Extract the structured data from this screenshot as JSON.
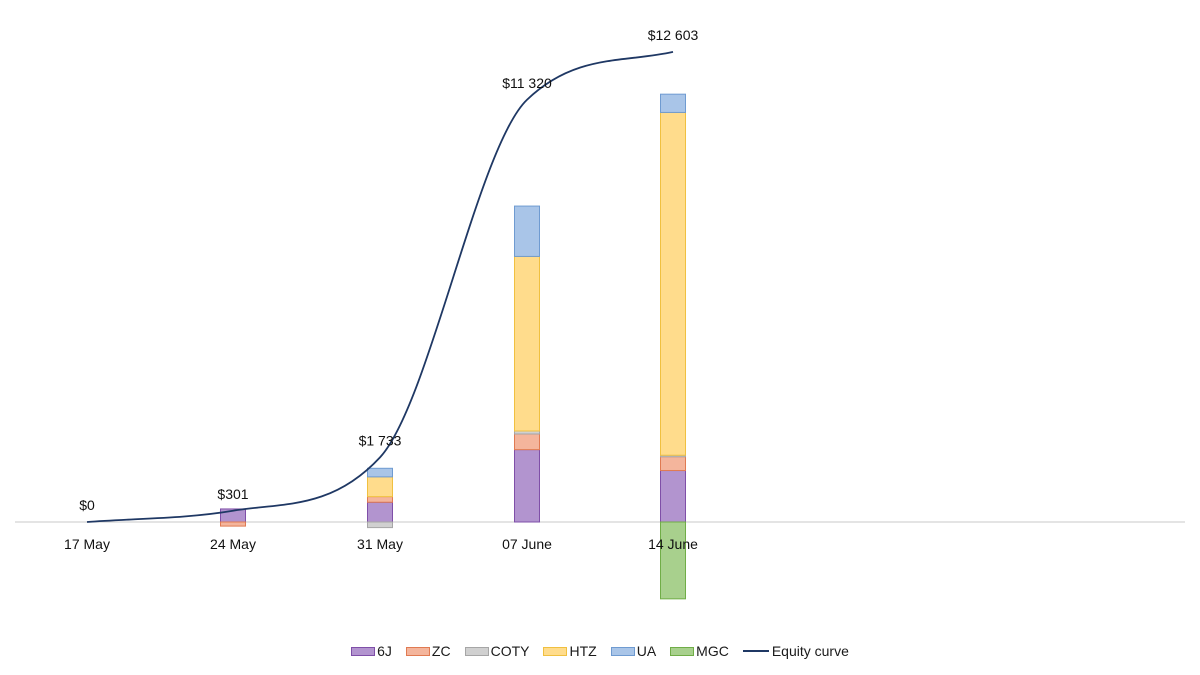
{
  "chart_data": {
    "type": "bar",
    "stacked": true,
    "categories": [
      "17 May",
      "24 May",
      "31 May",
      "07 June",
      "14 June"
    ],
    "series": [
      {
        "name": "6J",
        "color": "#b294cf",
        "stroke": "#7f4fa8",
        "values": [
          0,
          350,
          530,
          1940,
          1380
        ]
      },
      {
        "name": "ZC",
        "color": "#f4b59c",
        "stroke": "#e07a52",
        "values": [
          0,
          -110,
          150,
          420,
          370
        ]
      },
      {
        "name": "COTY",
        "color": "#d0d0d0",
        "stroke": "#a6a6a6",
        "values": [
          0,
          0,
          -150,
          80,
          40
        ]
      },
      {
        "name": "HTZ",
        "color": "#ffdc8c",
        "stroke": "#f0c040",
        "values": [
          0,
          0,
          530,
          4680,
          9190
        ]
      },
      {
        "name": "UA",
        "color": "#a9c5e8",
        "stroke": "#6f9bd1",
        "values": [
          0,
          0,
          230,
          1350,
          490
        ]
      },
      {
        "name": "MGC",
        "color": "#a8d08d",
        "stroke": "#70ad47",
        "values": [
          0,
          0,
          0,
          0,
          -2060
        ]
      }
    ],
    "line": {
      "name": "Equity curve",
      "color": "#1f3864",
      "values": [
        0,
        301,
        1733,
        11320,
        12603
      ]
    },
    "data_labels": [
      "$0",
      "$301",
      "$1 733",
      "$11 320",
      "$12 603"
    ],
    "ylim": [
      -3000,
      12000
    ],
    "legend": "bottom",
    "grid": false,
    "title": "",
    "xlabel": "",
    "ylabel": ""
  }
}
